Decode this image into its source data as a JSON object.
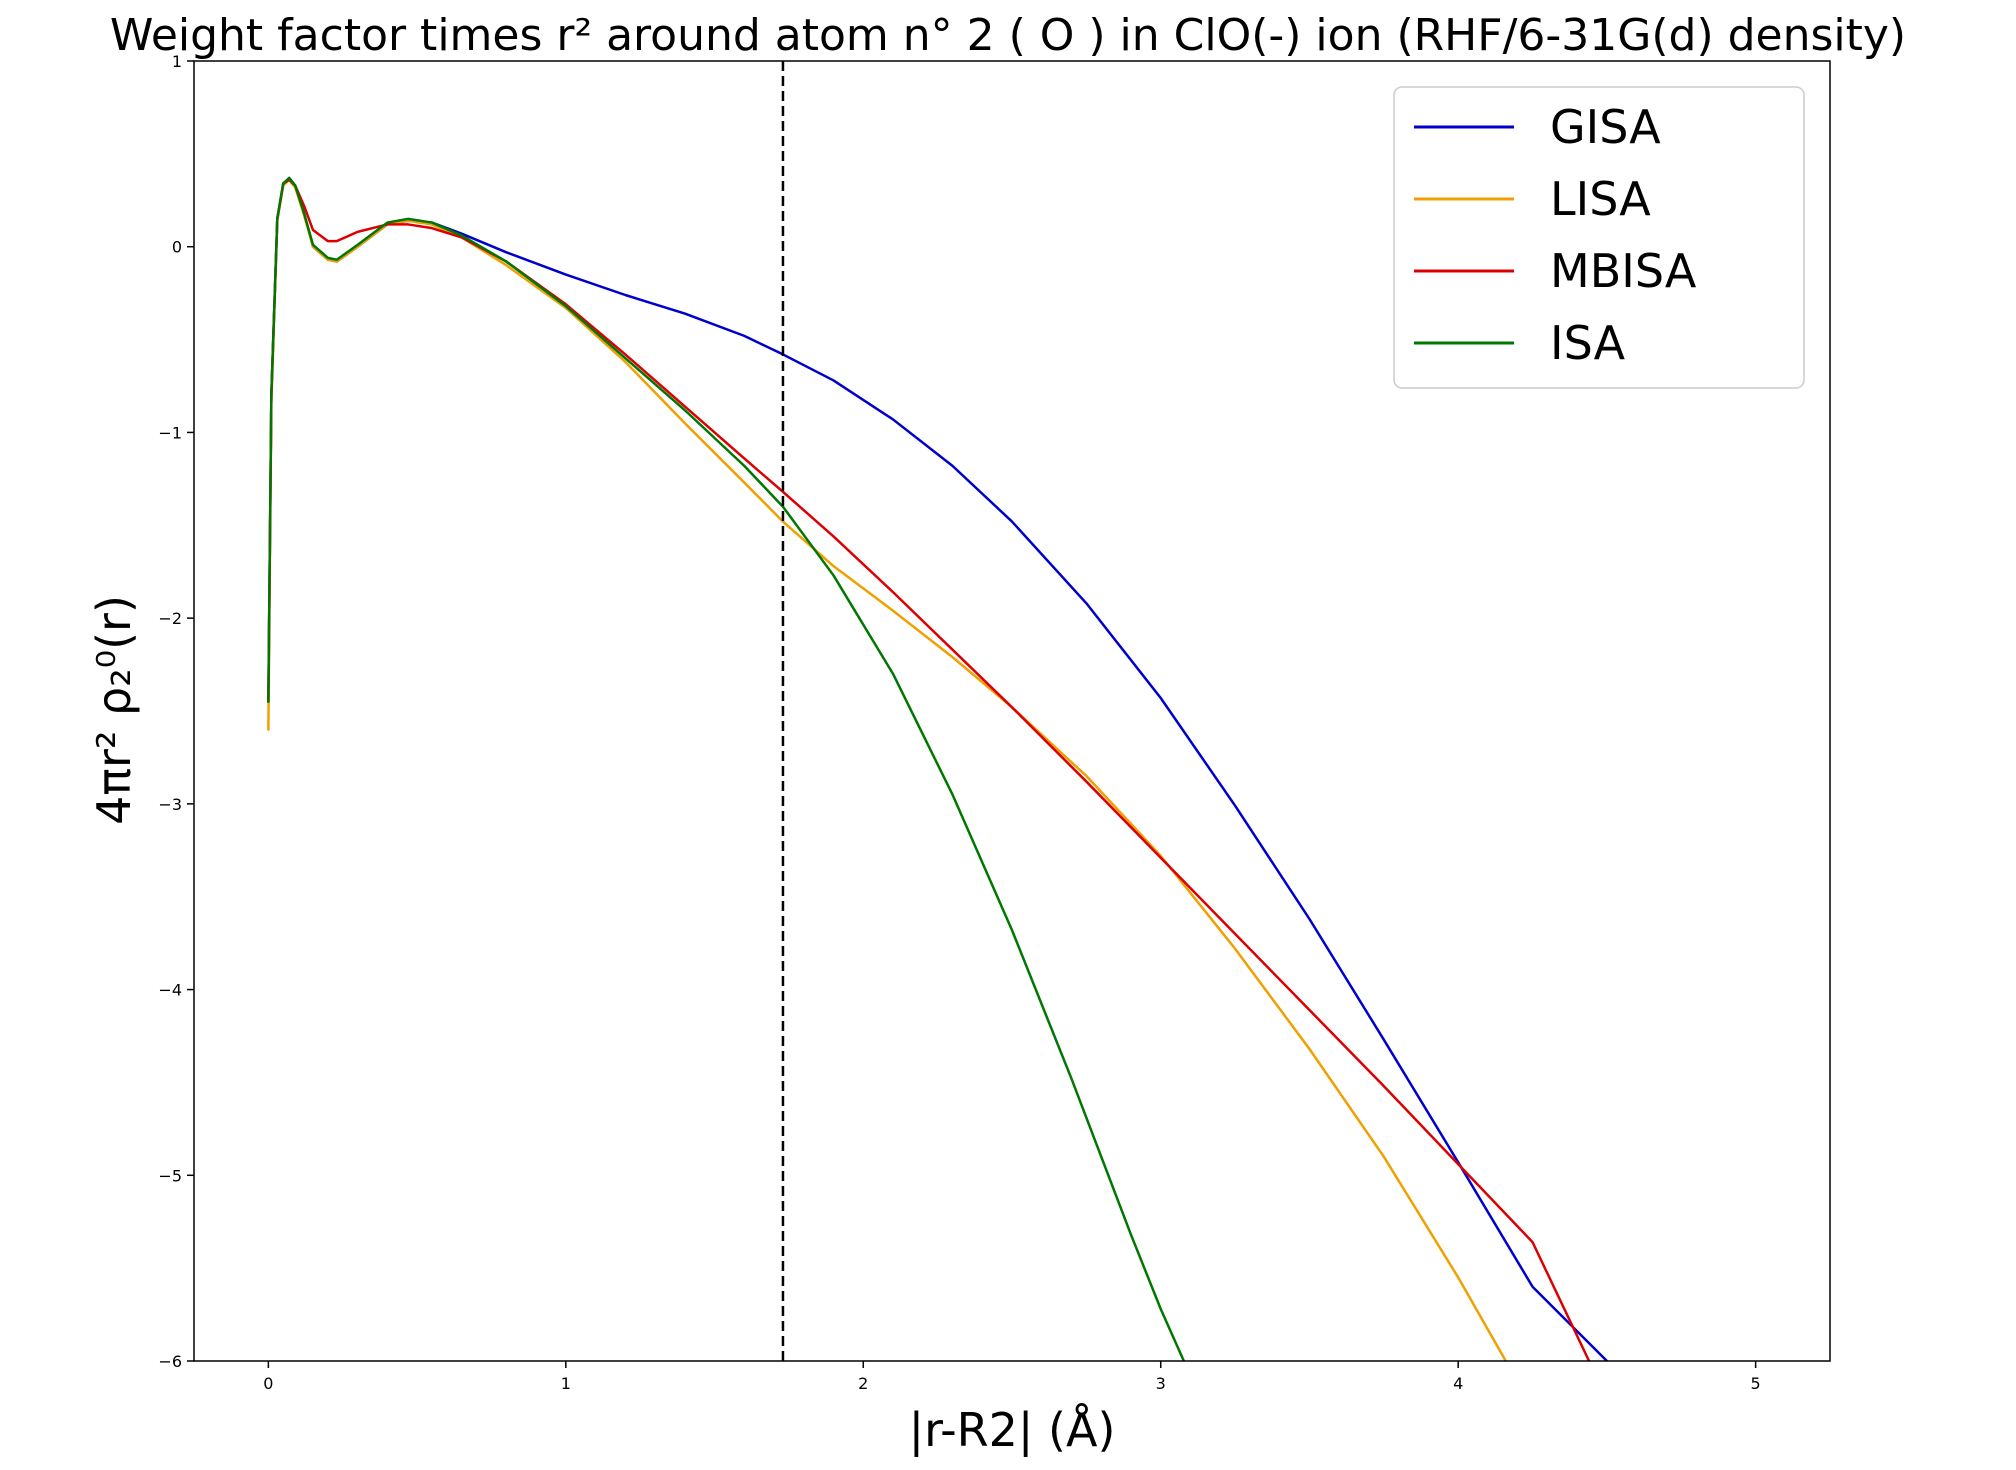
{
  "chart_data": {
    "type": "line",
    "title": "Weight factor times r² around atom n° 2 ( O ) in ClO(-) ion (RHF/6-31G(d) density)",
    "xlabel": "|r-R2| (Å)",
    "ylabel": "4πr²  ρ₂⁰(r)",
    "xlim": [
      -0.25,
      5.25
    ],
    "ylim": [
      -6,
      1
    ],
    "xticks": [
      0,
      1,
      2,
      3,
      4,
      5
    ],
    "yticks": [
      1,
      0,
      -1,
      -2,
      -3,
      -4,
      -5,
      -6
    ],
    "xtick_labels": [
      "0",
      "1",
      "2",
      "3",
      "4",
      "5"
    ],
    "ytick_labels": [
      "1",
      "0",
      "−1",
      "−2",
      "−3",
      "−4",
      "−5",
      "−6"
    ],
    "grid": false,
    "legend_position": "top-right",
    "vline": {
      "x": 1.73,
      "style": "dashed",
      "color": "#000000"
    },
    "series": [
      {
        "name": "GISA",
        "color": "#0000cc",
        "x": [
          0,
          0.01,
          0.03,
          0.05,
          0.07,
          0.09,
          0.12,
          0.15,
          0.2,
          0.23,
          0.3,
          0.4,
          0.47,
          0.55,
          0.65,
          0.8,
          1.0,
          1.2,
          1.4,
          1.6,
          1.73,
          1.9,
          2.1,
          2.3,
          2.5,
          2.75,
          3.0,
          3.25,
          3.5,
          3.75,
          4.0,
          4.25,
          4.5,
          4.52
        ],
        "y": [
          -2.45,
          -0.8,
          0.15,
          0.34,
          0.37,
          0.33,
          0.18,
          0.0,
          -0.07,
          -0.08,
          0.0,
          0.12,
          0.14,
          0.13,
          0.07,
          -0.03,
          -0.15,
          -0.26,
          -0.36,
          -0.48,
          -0.58,
          -0.72,
          -0.93,
          -1.18,
          -1.48,
          -1.92,
          -2.43,
          -3.01,
          -3.62,
          -4.27,
          -4.93,
          -5.6,
          -6.0,
          -6.05
        ]
      },
      {
        "name": "LISA",
        "color": "#f0a000",
        "x": [
          0,
          0.01,
          0.03,
          0.05,
          0.07,
          0.09,
          0.12,
          0.15,
          0.2,
          0.23,
          0.3,
          0.4,
          0.47,
          0.55,
          0.65,
          0.8,
          1.0,
          1.2,
          1.4,
          1.6,
          1.73,
          1.9,
          2.1,
          2.3,
          2.5,
          2.75,
          3.0,
          3.25,
          3.5,
          3.75,
          4.0,
          4.16
        ],
        "y": [
          -2.6,
          -0.85,
          0.14,
          0.33,
          0.36,
          0.32,
          0.17,
          0.0,
          -0.07,
          -0.08,
          0.0,
          0.12,
          0.14,
          0.12,
          0.05,
          -0.1,
          -0.33,
          -0.62,
          -0.95,
          -1.27,
          -1.48,
          -1.72,
          -1.96,
          -2.21,
          -2.48,
          -2.85,
          -3.28,
          -3.78,
          -4.32,
          -4.9,
          -5.55,
          -6.0
        ]
      },
      {
        "name": "MBISA",
        "color": "#dd0000",
        "x": [
          0,
          0.01,
          0.03,
          0.05,
          0.07,
          0.09,
          0.12,
          0.15,
          0.2,
          0.23,
          0.3,
          0.4,
          0.47,
          0.55,
          0.65,
          0.8,
          1.0,
          1.2,
          1.4,
          1.6,
          1.73,
          1.9,
          2.1,
          2.3,
          2.5,
          2.75,
          3.0,
          3.25,
          3.5,
          3.75,
          4.0,
          4.25,
          4.44
        ],
        "y": [
          -2.45,
          -0.8,
          0.15,
          0.34,
          0.36,
          0.33,
          0.22,
          0.09,
          0.03,
          0.03,
          0.08,
          0.12,
          0.12,
          0.1,
          0.05,
          -0.08,
          -0.31,
          -0.58,
          -0.86,
          -1.14,
          -1.32,
          -1.56,
          -1.86,
          -2.17,
          -2.48,
          -2.88,
          -3.29,
          -3.7,
          -4.11,
          -4.52,
          -4.94,
          -5.36,
          -6.0
        ]
      },
      {
        "name": "ISA",
        "color": "#007700",
        "x": [
          0,
          0.01,
          0.03,
          0.05,
          0.07,
          0.09,
          0.12,
          0.15,
          0.2,
          0.23,
          0.3,
          0.4,
          0.47,
          0.55,
          0.65,
          0.8,
          1.0,
          1.2,
          1.4,
          1.6,
          1.73,
          1.9,
          2.1,
          2.3,
          2.5,
          2.7,
          2.9,
          3.0,
          3.1
        ],
        "y": [
          -2.45,
          -0.8,
          0.15,
          0.34,
          0.37,
          0.33,
          0.18,
          0.01,
          -0.06,
          -0.07,
          0.01,
          0.13,
          0.15,
          0.13,
          0.06,
          -0.08,
          -0.32,
          -0.6,
          -0.88,
          -1.18,
          -1.4,
          -1.77,
          -2.3,
          -2.95,
          -3.68,
          -4.48,
          -5.32,
          -5.72,
          -6.08
        ]
      }
    ]
  }
}
